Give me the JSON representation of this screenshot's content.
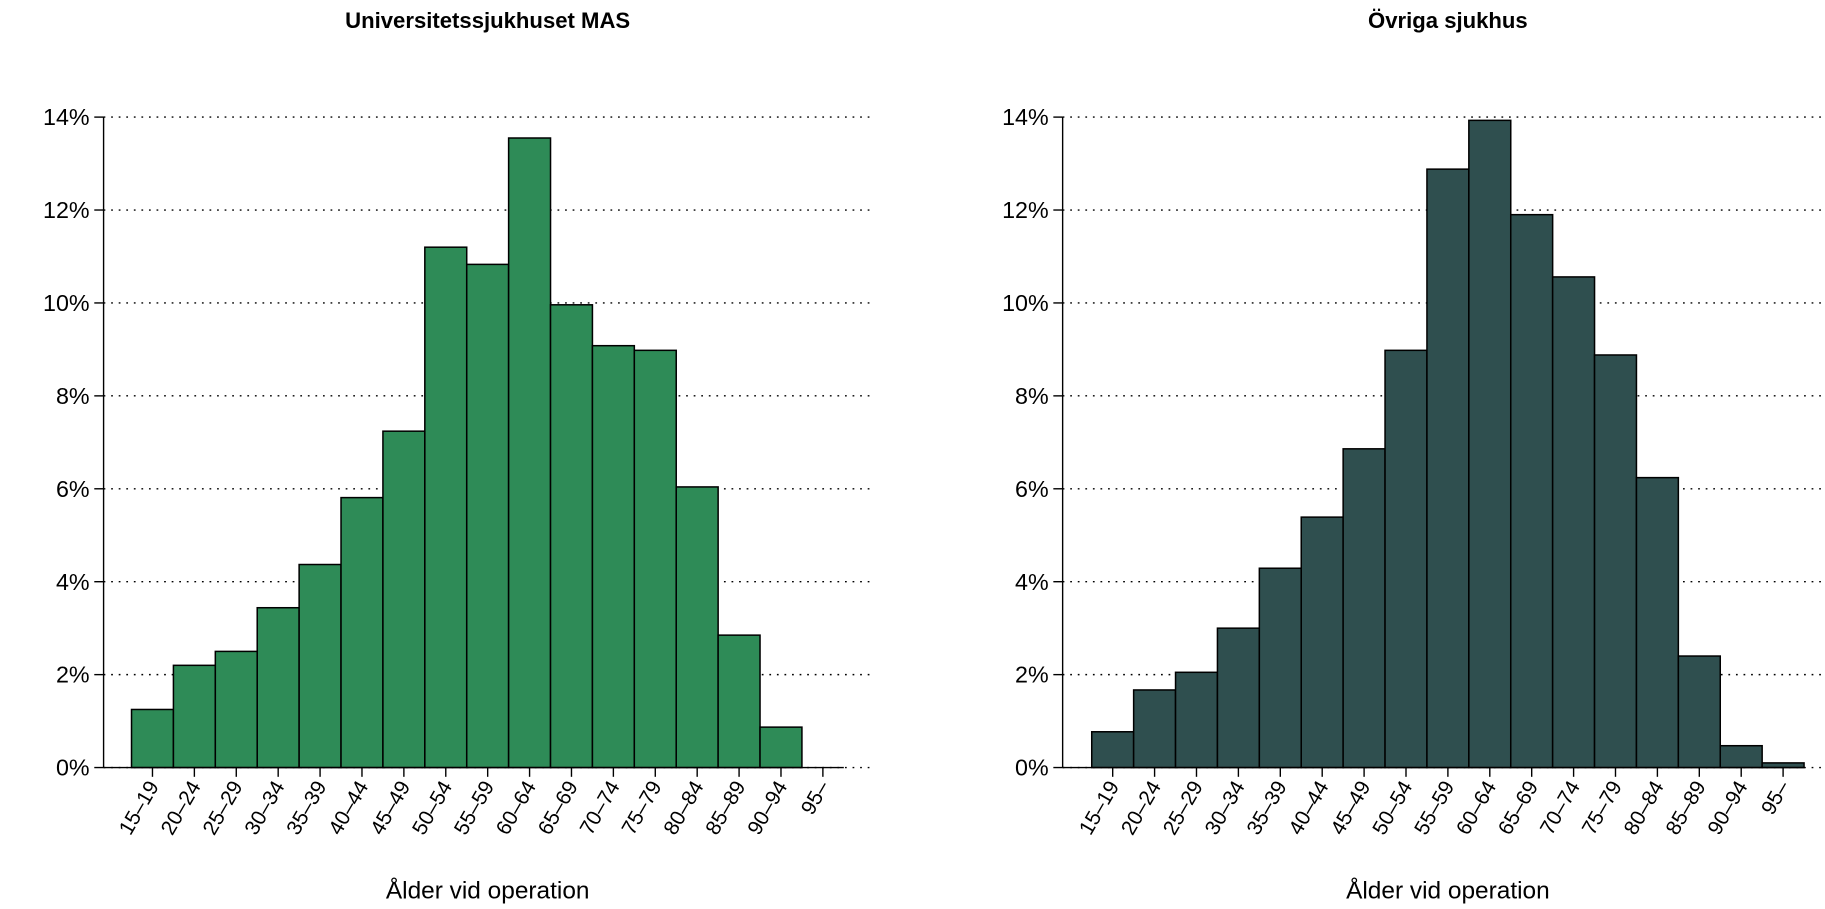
{
  "chart_data": [
    {
      "type": "bar",
      "title": "Universitetssjukhuset MAS",
      "x_label": "Ålder vid operation",
      "categories": [
        "15–19",
        "20–24",
        "25–29",
        "30–34",
        "35–39",
        "40–44",
        "45–49",
        "50–54",
        "55–59",
        "60–64",
        "65–69",
        "70–74",
        "75–79",
        "80–84",
        "85–89",
        "90–94",
        "95–"
      ],
      "values": [
        1.25,
        2.2,
        2.5,
        3.44,
        4.37,
        5.81,
        7.24,
        11.2,
        10.83,
        13.55,
        9.96,
        9.08,
        8.98,
        6.04,
        2.85,
        0.87,
        0
      ],
      "color": "#2e8b57",
      "ylim": [
        0,
        14
      ],
      "yticks": [
        {
          "value": 0,
          "label": "0%"
        },
        {
          "value": 2,
          "label": "2%"
        },
        {
          "value": 4,
          "label": "4%"
        },
        {
          "value": 6,
          "label": "6%"
        },
        {
          "value": 8,
          "label": "8%"
        },
        {
          "value": 10,
          "label": "10%"
        },
        {
          "value": 12,
          "label": "12%"
        },
        {
          "value": 14,
          "label": "14%"
        }
      ],
      "grid": true
    },
    {
      "type": "bar",
      "title": "Övriga sjukhus",
      "x_label": "Ålder vid operation",
      "categories": [
        "15–19",
        "20–24",
        "25–29",
        "30–34",
        "35–39",
        "40–44",
        "45–49",
        "50–54",
        "55–59",
        "60–64",
        "65–69",
        "70–74",
        "75–79",
        "80–84",
        "85–89",
        "90–94",
        "95–"
      ],
      "values": [
        0.77,
        1.67,
        2.05,
        3.0,
        4.29,
        5.39,
        6.86,
        8.98,
        12.88,
        13.93,
        11.9,
        10.56,
        8.88,
        6.24,
        2.4,
        0.47,
        0.1
      ],
      "color": "#2f4f4f",
      "ylim": [
        0,
        14
      ],
      "yticks": [
        {
          "value": 0,
          "label": "0%"
        },
        {
          "value": 2,
          "label": "2%"
        },
        {
          "value": 4,
          "label": "4%"
        },
        {
          "value": 6,
          "label": "6%"
        },
        {
          "value": 8,
          "label": "8%"
        },
        {
          "value": 10,
          "label": "10%"
        },
        {
          "value": 12,
          "label": "12%"
        },
        {
          "value": 14,
          "label": "14%"
        }
      ],
      "grid": true
    }
  ]
}
